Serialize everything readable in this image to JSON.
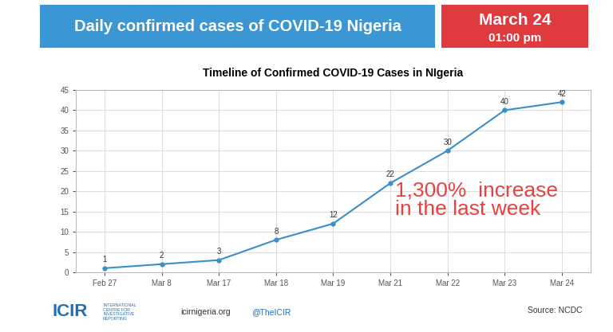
{
  "header": {
    "title": "Daily confirmed cases of COVID-19 Nigeria",
    "date": "March 24",
    "time": "01:00 pm"
  },
  "chart_data": {
    "type": "line",
    "title": "Timeline of Confirmed COVID-19 Cases in NIgeria",
    "categories": [
      "Feb 27",
      "Mar 8",
      "Mar 17",
      "Mar 18",
      "Mar 19",
      "Mar 21",
      "Mar 22",
      "Mar 23",
      "Mar 24"
    ],
    "values": [
      1,
      2,
      3,
      8,
      12,
      22,
      30,
      40,
      42
    ],
    "color": "#3a8fc9",
    "marker": "o",
    "line_style": "solid",
    "ylim": [
      0,
      45
    ],
    "yticks": [
      0,
      5,
      10,
      15,
      20,
      25,
      30,
      35,
      40,
      45
    ],
    "grid": true,
    "data_labels": true,
    "annotations": [
      "1,300%  increase\nin the last week"
    ]
  },
  "footer": {
    "logo": "ICIR",
    "organization": "INTERNATIONAL\nCENTRE FOR\nINVESTIGATIVE\nREPORTING",
    "website": "icirnigeria.org",
    "twitter": "@TheICIR",
    "source": "Source: NCDC"
  }
}
